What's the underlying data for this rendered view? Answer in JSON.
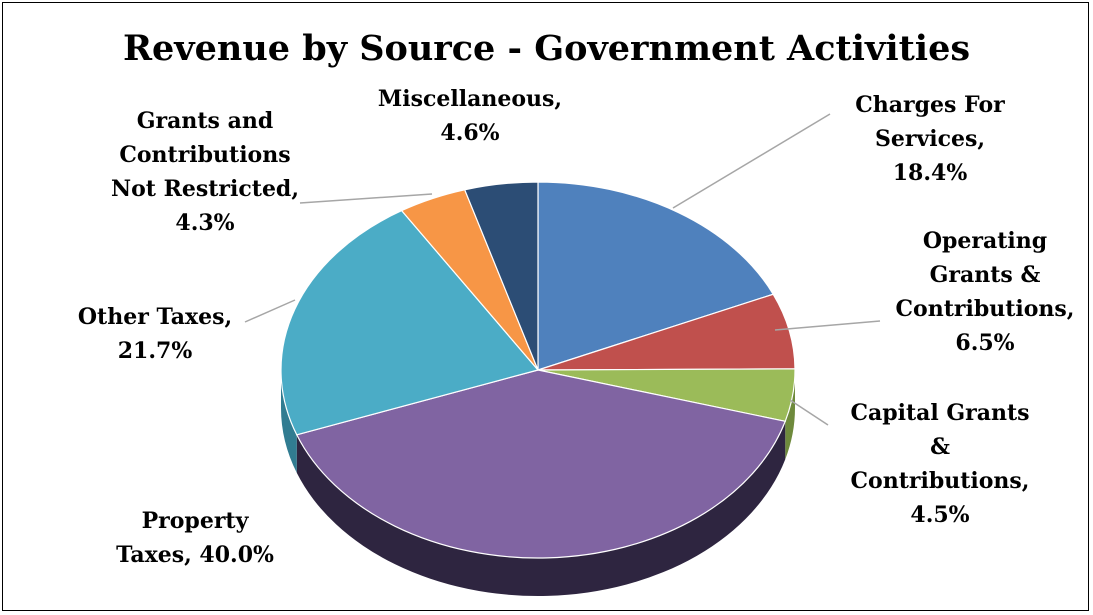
{
  "chart_data": {
    "type": "pie",
    "title": "Revenue by Source - Government Activities",
    "slices": [
      {
        "label": [
          "Charges For",
          "Services,",
          "18.4%"
        ],
        "value": 18.4,
        "color": "#4F81BD",
        "side": "#3B6496"
      },
      {
        "label": [
          "Operating",
          "Grants &",
          "Contributions,",
          "6.5%"
        ],
        "value": 6.5,
        "color": "#C0504D",
        "side": "#8E3835"
      },
      {
        "label": [
          "Capital Grants",
          "&",
          "Contributions,",
          "4.5%"
        ],
        "value": 4.5,
        "color": "#9BBB59",
        "side": "#6E8A3C"
      },
      {
        "label": [
          "Property",
          "Taxes, 40.0%"
        ],
        "value": 40.0,
        "color": "#8064A2",
        "side": "#2E2540"
      },
      {
        "label": [
          "Other Taxes,",
          "21.7%"
        ],
        "value": 21.7,
        "color": "#4BACC6",
        "side": "#317C91"
      },
      {
        "label": [
          "Grants and",
          "Contributions",
          "Not Restricted,",
          "4.3%"
        ],
        "value": 4.3,
        "color": "#F79646",
        "side": "#B86A2A"
      },
      {
        "label": [
          "Miscellaneous,",
          "4.6%"
        ],
        "value": 4.6,
        "color": "#2C4D75",
        "side": "#1C3350"
      }
    ]
  }
}
